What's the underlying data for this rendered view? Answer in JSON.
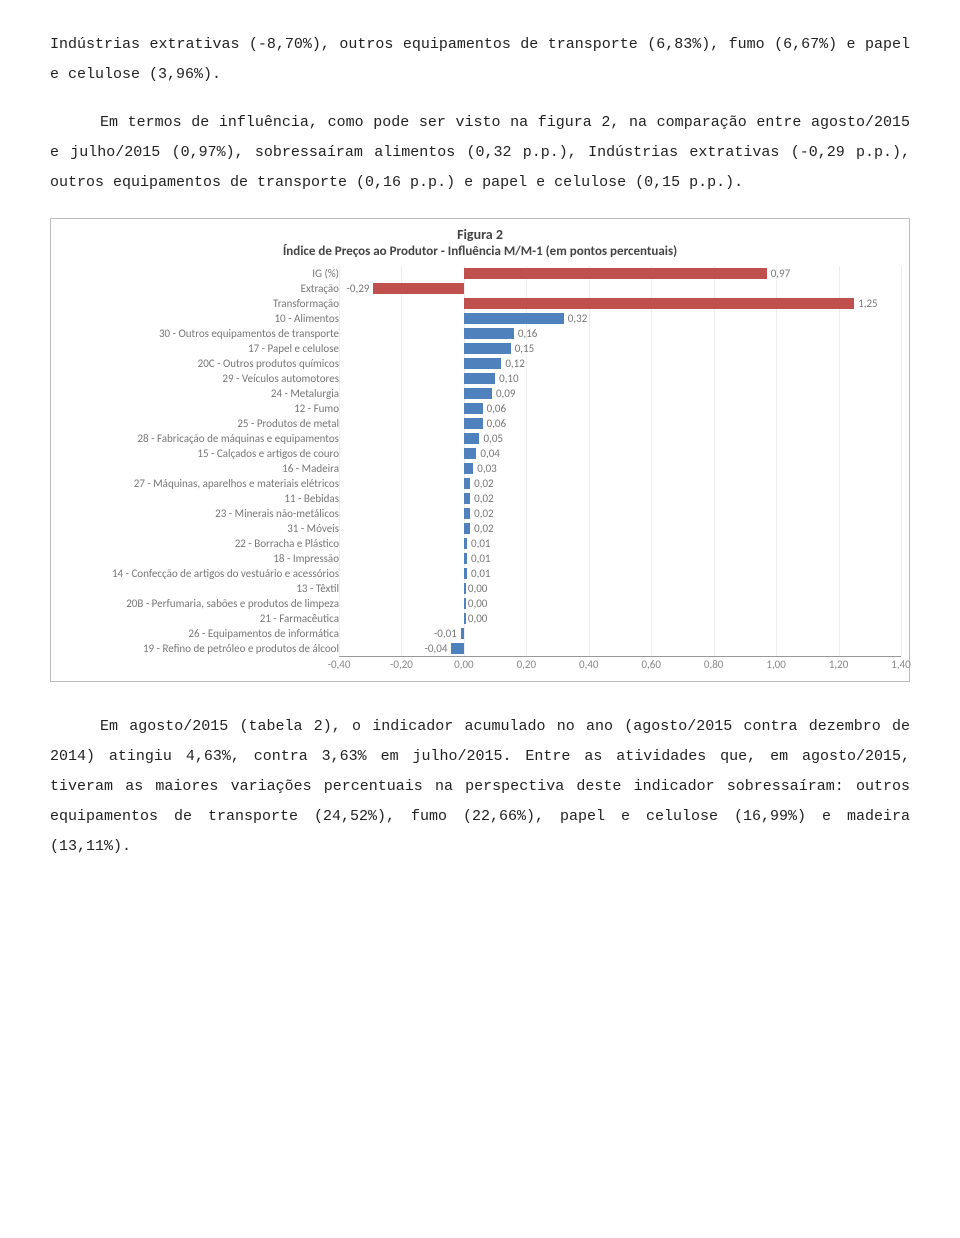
{
  "para1": "Indústrias extrativas (-8,70%), outros equipamentos de transporte (6,83%), fumo (6,67%) e papel e celulose (3,96%).",
  "para2": "Em termos de influência, como pode ser visto na figura 2, na comparação entre agosto/2015 e julho/2015 (0,97%), sobressaíram alimentos (0,32 p.p.), Indústrias extrativas (-0,29 p.p.), outros equipamentos de transporte (0,16 p.p.) e papel e celulose (0,15 p.p.).",
  "para3": "Em agosto/2015 (tabela 2), o indicador acumulado no ano (agosto/2015 contra dezembro de 2014) atingiu 4,63%, contra 3,63% em julho/2015. Entre as atividades que, em agosto/2015, tiveram as maiores variações percentuais na perspectiva deste indicador sobressaíram: outros equipamentos de transporte (24,52%), fumo (22,66%), papel e celulose (16,99%) e madeira (13,11%).",
  "chart": {
    "title": "Figura 2",
    "subtitle": "Índice de Preços ao Produtor - Influência M/M-1 (em pontos percentuais)",
    "x_min": -0.4,
    "x_max": 1.4,
    "x_ticks": [
      "-0,40",
      "-0,20",
      "0,00",
      "0,20",
      "0,40",
      "0,60",
      "0,80",
      "1,00",
      "1,20",
      "1,40"
    ],
    "colors": {
      "red": "#c0504d",
      "blue": "#4f81bd",
      "grid": "#eeeeee",
      "axis": "#999999"
    },
    "rows": [
      {
        "label": "IG (%)",
        "value": 0.97,
        "text": "0,97",
        "color": "red"
      },
      {
        "label": "Extração",
        "value": -0.29,
        "text": "-0,29",
        "color": "red"
      },
      {
        "label": "Transformação",
        "value": 1.25,
        "text": "1,25",
        "color": "red"
      },
      {
        "label": "10 - Alimentos",
        "value": 0.32,
        "text": "0,32",
        "color": "blue"
      },
      {
        "label": "30 - Outros equipamentos de transporte",
        "value": 0.16,
        "text": "0,16",
        "color": "blue"
      },
      {
        "label": "17 - Papel e celulose",
        "value": 0.15,
        "text": "0,15",
        "color": "blue"
      },
      {
        "label": "20C - Outros produtos químicos",
        "value": 0.12,
        "text": "0,12",
        "color": "blue"
      },
      {
        "label": "29 - Veículos automotores",
        "value": 0.1,
        "text": "0,10",
        "color": "blue"
      },
      {
        "label": "24 - Metalurgia",
        "value": 0.09,
        "text": "0,09",
        "color": "blue"
      },
      {
        "label": "12 - Fumo",
        "value": 0.06,
        "text": "0,06",
        "color": "blue"
      },
      {
        "label": "25 - Produtos de metal",
        "value": 0.06,
        "text": "0,06",
        "color": "blue"
      },
      {
        "label": "28 - Fabricação de máquinas e equipamentos",
        "value": 0.05,
        "text": "0,05",
        "color": "blue"
      },
      {
        "label": "15 - Calçados e artigos de couro",
        "value": 0.04,
        "text": "0,04",
        "color": "blue"
      },
      {
        "label": "16 - Madeira",
        "value": 0.03,
        "text": "0,03",
        "color": "blue"
      },
      {
        "label": "27 - Máquinas, aparelhos e materiais elétricos",
        "value": 0.02,
        "text": "0,02",
        "color": "blue"
      },
      {
        "label": "11 - Bebidas",
        "value": 0.02,
        "text": "0,02",
        "color": "blue"
      },
      {
        "label": "23 - Minerais não-metálicos",
        "value": 0.02,
        "text": "0,02",
        "color": "blue"
      },
      {
        "label": "31 - Móveis",
        "value": 0.02,
        "text": "0,02",
        "color": "blue"
      },
      {
        "label": "22 - Borracha e Plástico",
        "value": 0.01,
        "text": "0,01",
        "color": "blue"
      },
      {
        "label": "18 - Impressão",
        "value": 0.01,
        "text": "0,01",
        "color": "blue"
      },
      {
        "label": "14 - Confecção de artigos do vestuário e acessórios",
        "value": 0.01,
        "text": "0,01",
        "color": "blue"
      },
      {
        "label": "13 - Têxtil",
        "value": 0.0,
        "text": "0,00",
        "color": "blue"
      },
      {
        "label": "20B - Perfumaria, sabões e produtos de limpeza",
        "value": 0.0,
        "text": "0,00",
        "color": "blue"
      },
      {
        "label": "21 - Farmacêutica",
        "value": 0.0,
        "text": "0,00",
        "color": "blue"
      },
      {
        "label": "26 - Equipamentos de informática",
        "value": -0.01,
        "text": "-0,01",
        "color": "blue"
      },
      {
        "label": "19 - Refino de petróleo e produtos de álcool",
        "value": -0.04,
        "text": "-0,04",
        "color": "blue"
      }
    ]
  }
}
